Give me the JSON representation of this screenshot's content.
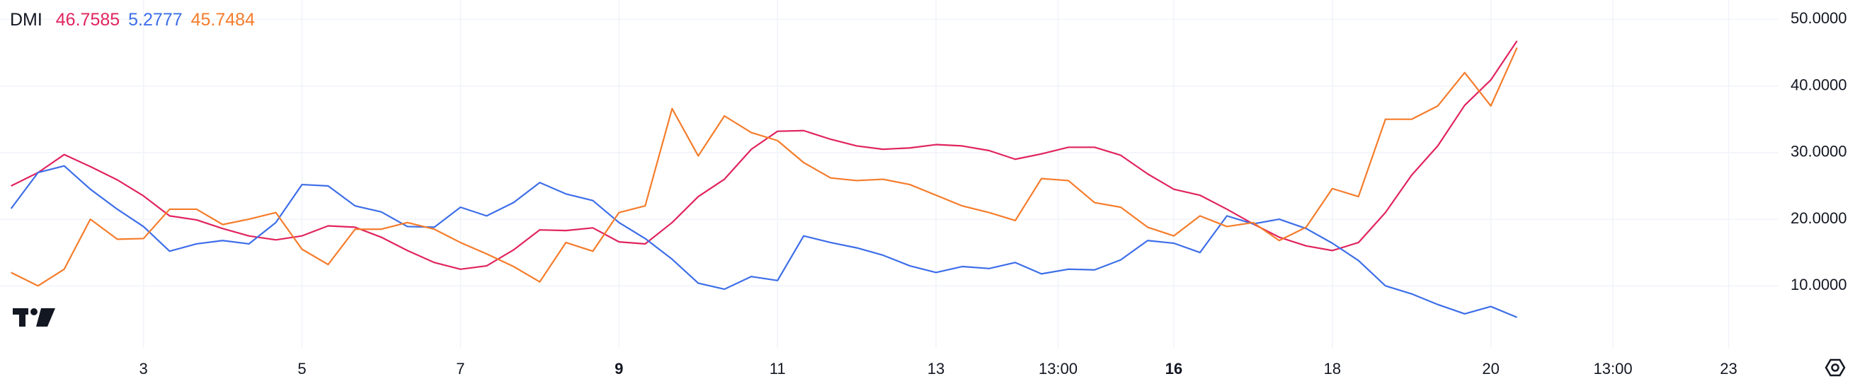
{
  "chart_data": {
    "type": "line",
    "title": "DMI",
    "x": [
      1.33,
      1.67,
      2,
      2.33,
      2.67,
      3,
      3.33,
      3.67,
      4,
      4.33,
      4.67,
      5,
      5.33,
      5.67,
      6,
      6.33,
      6.67,
      7,
      7.33,
      7.67,
      8,
      8.33,
      8.67,
      9,
      9.33,
      9.67,
      10,
      10.33,
      10.67,
      11,
      11.33,
      11.67,
      12,
      12.33,
      12.67,
      13,
      13.33,
      13.67,
      14,
      14.33,
      14.67,
      15,
      15.33,
      15.67,
      16,
      16.33,
      16.67,
      17,
      17.33,
      17.67,
      18,
      18.33,
      18.67,
      19,
      19.33,
      19.67,
      20,
      20.33
    ],
    "series": [
      {
        "color": "#e0245e",
        "values": [
          25.0,
          27.0,
          29.7,
          27.9,
          25.9,
          23.5,
          20.5,
          19.9,
          18.6,
          17.5,
          16.9,
          17.5,
          19.0,
          18.8,
          17.3,
          15.3,
          13.5,
          12.5,
          13.0,
          15.4,
          18.4,
          18.3,
          18.7,
          16.6,
          16.3,
          19.5,
          23.4,
          26.0,
          30.5,
          33.2,
          33.3,
          32.0,
          31.0,
          30.5,
          30.7,
          31.2,
          31.0,
          30.3,
          29.0,
          29.8,
          30.8,
          30.8,
          29.6,
          26.8,
          24.5,
          23.6,
          21.5,
          19.3,
          17.3,
          16.0,
          15.3,
          16.5,
          21.0,
          26.6,
          31.0,
          37.1,
          40.9,
          46.7585
        ]
      },
      {
        "color": "#3d6ee8",
        "values": [
          21.6,
          27.0,
          28.0,
          24.5,
          21.5,
          18.9,
          15.2,
          16.3,
          16.8,
          16.3,
          19.5,
          25.2,
          25.0,
          22.0,
          21.1,
          18.9,
          18.8,
          21.8,
          20.5,
          22.5,
          25.5,
          23.8,
          22.8,
          19.5,
          17.1,
          14.0,
          10.4,
          9.5,
          11.4,
          10.8,
          17.5,
          16.5,
          15.7,
          14.6,
          13.0,
          12.0,
          12.9,
          12.6,
          13.5,
          11.8,
          12.5,
          12.4,
          13.9,
          16.8,
          16.4,
          15.0,
          20.5,
          19.3,
          20.0,
          18.6,
          16.4,
          13.8,
          10.0,
          8.8,
          7.2,
          5.8,
          6.9,
          5.2777
        ]
      },
      {
        "color": "#f57c2b",
        "values": [
          12.0,
          10.0,
          12.5,
          20.0,
          17.0,
          17.1,
          21.5,
          21.5,
          19.2,
          20.0,
          21.0,
          15.5,
          13.2,
          18.5,
          18.5,
          19.5,
          18.5,
          16.5,
          14.8,
          12.9,
          10.6,
          16.5,
          15.2,
          21.0,
          22.0,
          36.6,
          29.5,
          35.5,
          33.0,
          31.8,
          28.5,
          26.2,
          25.8,
          26.0,
          25.2,
          23.6,
          22.0,
          21.0,
          19.8,
          26.1,
          25.8,
          22.5,
          21.8,
          18.8,
          17.5,
          20.5,
          18.9,
          19.5,
          16.8,
          18.8,
          24.6,
          23.4,
          35.0,
          35.0,
          37.0,
          42.0,
          37.0,
          45.7484
        ]
      }
    ],
    "xlim": [
      1.19,
      23.63
    ],
    "xticks": [
      3,
      5,
      7,
      {
        "value": 9,
        "bold": true
      },
      11,
      13,
      {
        "value": 14.54,
        "label": "13:00"
      },
      {
        "value": 16,
        "bold": true
      },
      18,
      20,
      {
        "value": 21.54,
        "label": "13:00"
      },
      23
    ],
    "ylim": [
      0.7,
      52.9
    ],
    "yticks": [
      {
        "value": 10,
        "label": "10.0000"
      },
      {
        "value": 20,
        "label": "20.0000"
      },
      {
        "value": 30,
        "label": "30.0000"
      },
      {
        "value": 40,
        "label": "40.0000"
      },
      {
        "value": 50,
        "label": "50.0000"
      }
    ],
    "grid": true
  }
}
